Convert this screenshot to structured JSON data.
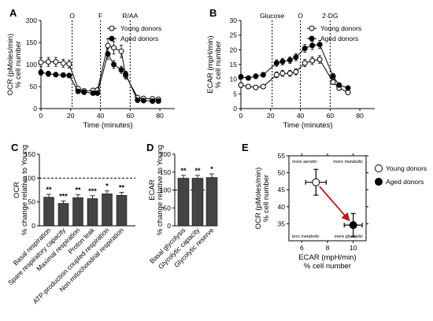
{
  "chart_data": [
    {
      "id": "A",
      "panel_label": "A",
      "type": "line",
      "xlabel": "Time (minutes)",
      "ylabel": [
        "OCR (pMoles/min)",
        "% cell number"
      ],
      "xlim": [
        0,
        90
      ],
      "ylim": [
        0,
        200
      ],
      "xticks": [
        "0",
        "20",
        "40",
        "60",
        "80"
      ],
      "yticks": [
        "0",
        "50",
        "100",
        "150",
        "200"
      ],
      "injections": [
        {
          "label": "O",
          "x": 21
        },
        {
          "label": "F",
          "x": 40
        },
        {
          "label": "R/AA",
          "x": 60
        }
      ],
      "legend": {
        "position": "top-right"
      },
      "series": [
        {
          "name": "Young donors",
          "marker": "open-circle",
          "x": [
            0,
            5,
            10,
            15,
            19,
            25,
            29,
            35,
            38,
            45,
            49,
            54,
            57,
            65,
            69,
            75,
            79
          ],
          "y": [
            105,
            106,
            106,
            103,
            101,
            45,
            40,
            41,
            42,
            143,
            138,
            130,
            75,
            25,
            23,
            22,
            21
          ],
          "err": [
            10,
            10,
            10,
            9,
            9,
            5,
            5,
            5,
            5,
            15,
            14,
            14,
            8,
            3,
            3,
            3,
            3
          ]
        },
        {
          "name": "Aged donors",
          "marker": "filled-circle",
          "x": [
            0,
            5,
            10,
            15,
            19,
            25,
            29,
            35,
            38,
            45,
            49,
            54,
            57,
            65,
            69,
            75,
            79
          ],
          "y": [
            82,
            79,
            77,
            76,
            75,
            39,
            37,
            35,
            35,
            124,
            100,
            88,
            78,
            19,
            18,
            17,
            17
          ],
          "err": [
            6,
            6,
            5,
            5,
            5,
            4,
            4,
            4,
            4,
            12,
            9,
            8,
            7,
            2,
            2,
            2,
            2
          ]
        }
      ]
    },
    {
      "id": "B",
      "panel_label": "B",
      "type": "line",
      "xlabel": "Time (minutes)",
      "ylabel": [
        "ECAR (mpH/min)",
        "% cell number"
      ],
      "xlim": [
        0,
        90
      ],
      "ylim": [
        0,
        30
      ],
      "xticks": [
        "0",
        "20",
        "40",
        "60",
        "80"
      ],
      "yticks": [
        "0",
        "5",
        "10",
        "15",
        "20",
        "25",
        "30"
      ],
      "injections": [
        {
          "label": "Glucose",
          "x": 21
        },
        {
          "label": "O",
          "x": 40
        },
        {
          "label": "2-DG",
          "x": 60
        }
      ],
      "legend": {
        "position": "top-right"
      },
      "series": [
        {
          "name": "Young donors",
          "marker": "open-circle",
          "x": [
            0,
            5,
            10,
            15,
            24,
            28,
            33,
            37,
            43,
            48,
            53,
            62,
            66,
            72
          ],
          "y": [
            8,
            7.5,
            7.2,
            7.5,
            11.5,
            12,
            12,
            12.5,
            15.5,
            16.3,
            16.7,
            9,
            7,
            5.5
          ],
          "err": [
            0.8,
            0.7,
            0.7,
            0.7,
            1,
            1,
            1,
            1,
            1.2,
            1.3,
            1.3,
            0.8,
            0.7,
            0.6
          ]
        },
        {
          "name": "Aged donors",
          "marker": "filled-circle",
          "x": [
            0,
            5,
            10,
            15,
            24,
            28,
            33,
            37,
            43,
            48,
            53,
            62,
            66,
            72
          ],
          "y": [
            10.8,
            10.4,
            11,
            11.5,
            15.5,
            16,
            16.5,
            17.5,
            20.5,
            21.5,
            21.8,
            11,
            8,
            7
          ],
          "err": [
            0.8,
            0.7,
            0.8,
            0.8,
            1.1,
            1.1,
            1.1,
            1.2,
            1.3,
            1.4,
            1.4,
            0.9,
            0.7,
            0.6
          ]
        }
      ]
    },
    {
      "id": "C",
      "panel_label": "C",
      "type": "bar",
      "ylabel": [
        "OCR",
        "% change relative to Young"
      ],
      "ylim": [
        0,
        150
      ],
      "yticks": [
        "0",
        "50",
        "100",
        "150"
      ],
      "reference_line": 100,
      "categories": [
        "Basal respiration",
        "Spare respiratory capacity",
        "Maximal respiration",
        "Proton leak",
        "ATP-production coupled respiration",
        "Non-mitochondrial respiration"
      ],
      "values": [
        60,
        47,
        59,
        57,
        67,
        64
      ],
      "err": [
        6,
        5,
        6,
        6,
        6,
        6
      ],
      "significance": [
        "**",
        "***",
        "**",
        "***",
        "*",
        "**"
      ]
    },
    {
      "id": "D",
      "panel_label": "D",
      "type": "bar",
      "ylabel": [
        "ECAR",
        "% change relative to Young"
      ],
      "ylim": [
        0,
        200
      ],
      "yticks": [
        "0",
        "50",
        "100",
        "150",
        "200"
      ],
      "reference_line": 100,
      "categories": [
        "Basal glycolysis",
        "Glycolytic capacity",
        "Glycolytic reserve"
      ],
      "values": [
        133,
        133,
        135
      ],
      "err": [
        8,
        8,
        10
      ],
      "significance": [
        "**",
        "**",
        "*"
      ]
    },
    {
      "id": "E",
      "panel_label": "E",
      "type": "scatter",
      "xlabel": [
        "ECAR (mpH/min)",
        "% cell number"
      ],
      "ylabel": [
        "OCR (pMoles/min)",
        "% cell number"
      ],
      "xlim": [
        5,
        11
      ],
      "ylim": [
        30,
        55
      ],
      "xticks": [
        "6",
        "8",
        "10"
      ],
      "yticks": [
        "35",
        "40",
        "45",
        "50",
        "55"
      ],
      "quadrant_labels": [
        "more aerobic",
        "more metabolic",
        "less metabolic",
        "more glycolytic"
      ],
      "legend": {
        "position": "right"
      },
      "series": [
        {
          "name": "Young donors",
          "marker": "open-circle",
          "x": 7.1,
          "y": 47.2,
          "xerr": 0.8,
          "yerr": 3.8
        },
        {
          "name": "Aged donors",
          "marker": "filled-circle",
          "x": 10.0,
          "y": 34.6,
          "xerr": 0.7,
          "yerr": 3.4
        }
      ],
      "arrow": {
        "from": "Young donors",
        "to": "Aged donors",
        "color": "#b01c1c"
      }
    }
  ]
}
